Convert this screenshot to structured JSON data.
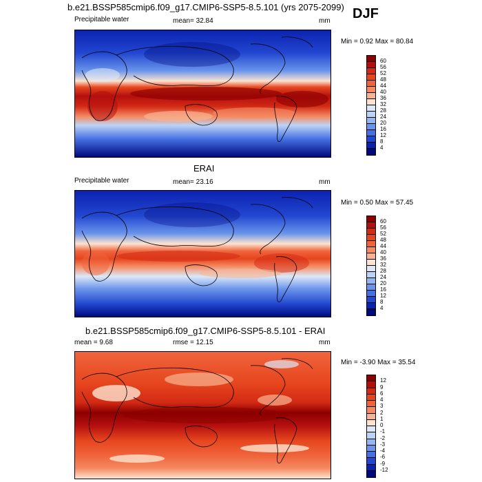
{
  "season": "DJF",
  "panels": [
    {
      "title": "b.e21.BSSP585cmip6.f09_g17.CMIP6-SSP5-8.5.101 (yrs 2075-2099)",
      "variable": "Precipitable water",
      "stat1": "mean=  32.84",
      "stat2": "",
      "units": "mm",
      "minmax": "Min =   0.92 Max =  80.84"
    },
    {
      "title": "ERAI",
      "variable": "Precipitable water",
      "stat1": "mean=  23.16",
      "stat2": "",
      "units": "mm",
      "minmax": "Min =   0.50 Max =  57.45"
    },
    {
      "title": "b.e21.BSSP585cmip6.f09_g17.CMIP6-SSP5-8.5.101 - ERAI",
      "variable": "",
      "stat1": "mean =    9.68",
      "stat2": "rmse =  12.15",
      "units": "mm",
      "minmax": "Min =  -3.90 Max =  35.54"
    }
  ],
  "colorbars": {
    "abs": {
      "labels": [
        "60",
        "56",
        "52",
        "48",
        "44",
        "40",
        "36",
        "32",
        "28",
        "24",
        "20",
        "16",
        "12",
        "8",
        "4"
      ],
      "colors": [
        "#8c0000",
        "#b40f0f",
        "#d22a14",
        "#e6461e",
        "#f0643c",
        "#f58a62",
        "#f8b492",
        "#fce3cf",
        "#dce8f8",
        "#bcd3f5",
        "#94b6f0",
        "#6a94ea",
        "#4470e2",
        "#2247d0",
        "#0b22b0",
        "#00087a"
      ]
    },
    "diff": {
      "labels": [
        "12",
        "9",
        "6",
        "4",
        "3",
        "2",
        "1",
        "0",
        "-1",
        "-2",
        "-3",
        "-4",
        "-6",
        "-9",
        "-12"
      ],
      "colors": [
        "#8c0000",
        "#b40f0f",
        "#d22a14",
        "#e6461e",
        "#f0643c",
        "#f58a62",
        "#f8b492",
        "#fce3cf",
        "#dce8f8",
        "#bcd3f5",
        "#94b6f0",
        "#6a94ea",
        "#4470e2",
        "#2247d0",
        "#0b22b0",
        "#00087a"
      ]
    }
  },
  "chart_data": [
    {
      "type": "heatmap",
      "title": "b.e21.BSSP585cmip6.f09_g17.CMIP6-SSP5-8.5.101 (yrs 2075-2099)",
      "variable": "Precipitable water",
      "units": "mm",
      "mean": 32.84,
      "min": 0.92,
      "max": 80.84,
      "levels": [
        4,
        8,
        12,
        16,
        20,
        24,
        28,
        32,
        36,
        40,
        44,
        48,
        52,
        56,
        60
      ]
    },
    {
      "type": "heatmap",
      "title": "ERAI",
      "variable": "Precipitable water",
      "units": "mm",
      "mean": 23.16,
      "min": 0.5,
      "max": 57.45,
      "levels": [
        4,
        8,
        12,
        16,
        20,
        24,
        28,
        32,
        36,
        40,
        44,
        48,
        52,
        56,
        60
      ]
    },
    {
      "type": "heatmap",
      "title": "b.e21.BSSP585cmip6.f09_g17.CMIP6-SSP5-8.5.101 - ERAI",
      "units": "mm",
      "mean": 9.68,
      "rmse": 12.15,
      "min": -3.9,
      "max": 35.54,
      "levels": [
        -12,
        -9,
        -6,
        -4,
        -3,
        -2,
        -1,
        0,
        1,
        2,
        3,
        4,
        6,
        9,
        12
      ]
    }
  ]
}
